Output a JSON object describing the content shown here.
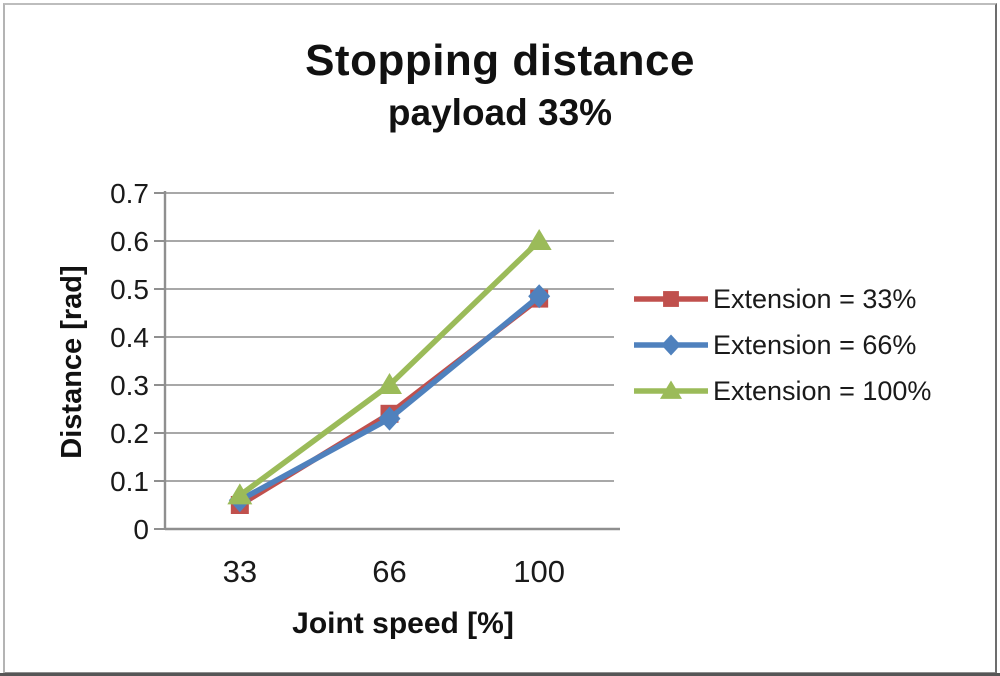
{
  "chart_data": {
    "type": "line",
    "title": "Stopping distance",
    "subtitle": "payload 33%",
    "xlabel": "Joint speed [%]",
    "ylabel": "Distance [rad]",
    "categories": [
      "33",
      "66",
      "100"
    ],
    "ylim": [
      0,
      0.7
    ],
    "yticks": [
      "0",
      "0.1",
      "0.2",
      "0.3",
      "0.4",
      "0.5",
      "0.6",
      "0.7"
    ],
    "grid": true,
    "legend_position": "right",
    "series": [
      {
        "name": "Extension = 33%",
        "marker": "square",
        "color": "#C0504D",
        "values": [
          0.05,
          0.24,
          0.48
        ]
      },
      {
        "name": "Extension = 66%",
        "marker": "diamond",
        "color": "#4F81BD",
        "values": [
          0.06,
          0.23,
          0.485
        ]
      },
      {
        "name": "Extension = 100%",
        "marker": "triangle",
        "color": "#9BBB59",
        "values": [
          0.07,
          0.3,
          0.6
        ]
      }
    ],
    "colors": {
      "axis": "#8f8f8f",
      "gridline": "#9c9c9c",
      "text": "#1a1a1a"
    }
  }
}
